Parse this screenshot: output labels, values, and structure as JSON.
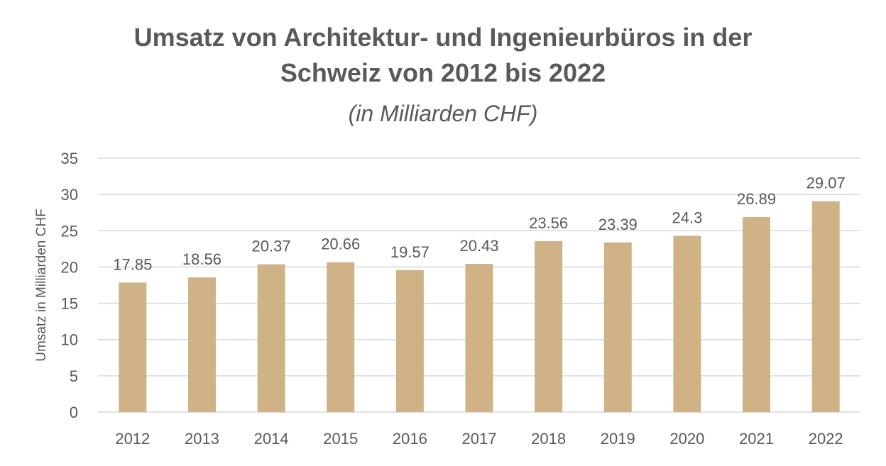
{
  "chart_data": {
    "type": "bar",
    "title_line1": "Umsatz von Architektur- und Ingenieurbüros in der",
    "title_line2": "Schweiz von 2012 bis 2022",
    "subtitle": "(in Milliarden CHF)",
    "xlabel": "",
    "ylabel": "Umsatz in Milliarden CHF",
    "categories": [
      "2012",
      "2013",
      "2014",
      "2015",
      "2016",
      "2017",
      "2018",
      "2019",
      "2020",
      "2021",
      "2022"
    ],
    "values": [
      17.85,
      18.56,
      20.37,
      20.66,
      19.57,
      20.43,
      23.56,
      23.39,
      24.3,
      26.89,
      29.07
    ],
    "data_labels": [
      "17.85",
      "18.56",
      "20.37",
      "20.66",
      "19.57",
      "20.43",
      "23.56",
      "23.39",
      "24.3",
      "26.89",
      "29.07"
    ],
    "ylim": [
      0,
      35
    ],
    "yticks": [
      0,
      5,
      10,
      15,
      20,
      25,
      30,
      35
    ],
    "grid": true,
    "legend": "none",
    "colors": {
      "bar": "#cfb286",
      "grid": "#d9d9d9",
      "text": "#595959"
    }
  }
}
